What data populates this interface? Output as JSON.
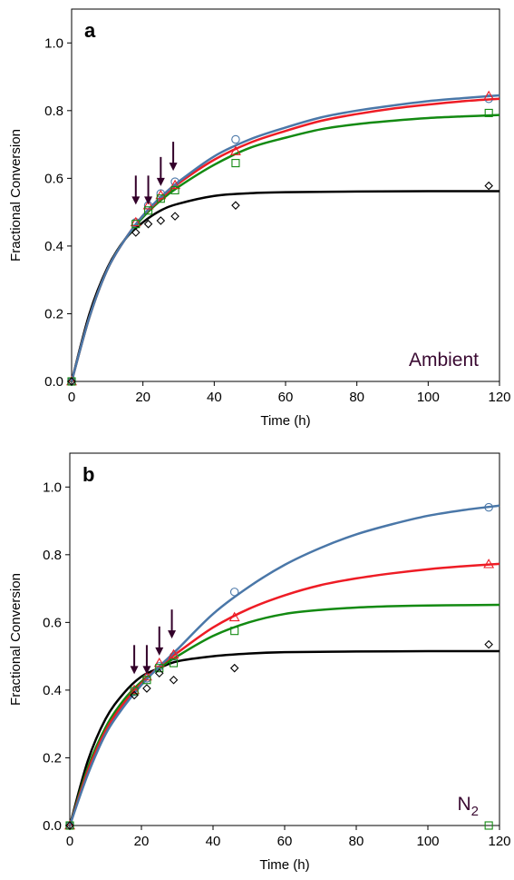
{
  "colors": {
    "blue": "#4a77a8",
    "red": "#ee1c25",
    "green": "#138a12",
    "black": "#000000",
    "arrow": "#33002a",
    "condition": "#3a0a32"
  },
  "chart_data": [
    {
      "type": "scatter",
      "panel_label": "a",
      "condition_label": "Ambient",
      "condition_sub": "",
      "xlabel": "Time (h)",
      "ylabel": "Fractional Conversion",
      "xlim": [
        0,
        120
      ],
      "ylim": [
        0,
        1.1
      ],
      "xticks": [
        0,
        20,
        40,
        60,
        80,
        100,
        120
      ],
      "yticks": [
        0.0,
        0.2,
        0.4,
        0.6,
        0.8,
        1.0
      ],
      "xtick_labels": [
        "0",
        "20",
        "40",
        "60",
        "80",
        "100",
        "120"
      ],
      "ytick_labels": [
        "0.0",
        "0.2",
        "0.4",
        "0.6",
        "0.8",
        "1.0"
      ],
      "arrows_x": [
        18,
        21.5,
        25,
        28.5
      ],
      "series": [
        {
          "marker": "circle",
          "color": "blue",
          "x": [
            0,
            18,
            21.5,
            25,
            29,
            46,
            117
          ],
          "y": [
            0,
            0.47,
            0.52,
            0.555,
            0.59,
            0.715,
            0.835
          ],
          "curve": [
            [
              0,
              0
            ],
            [
              5,
              0.19
            ],
            [
              10,
              0.33
            ],
            [
              15,
              0.42
            ],
            [
              20,
              0.49
            ],
            [
              25,
              0.545
            ],
            [
              30,
              0.59
            ],
            [
              40,
              0.665
            ],
            [
              50,
              0.715
            ],
            [
              60,
              0.75
            ],
            [
              70,
              0.78
            ],
            [
              80,
              0.8
            ],
            [
              90,
              0.815
            ],
            [
              100,
              0.828
            ],
            [
              110,
              0.837
            ],
            [
              120,
              0.845
            ]
          ]
        },
        {
          "marker": "triangle",
          "color": "red",
          "x": [
            0,
            18,
            21.5,
            25,
            29,
            46,
            117
          ],
          "y": [
            0,
            0.47,
            0.52,
            0.55,
            0.58,
            0.68,
            0.843
          ],
          "curve": [
            [
              0,
              0
            ],
            [
              5,
              0.19
            ],
            [
              10,
              0.33
            ],
            [
              15,
              0.42
            ],
            [
              20,
              0.49
            ],
            [
              25,
              0.54
            ],
            [
              30,
              0.585
            ],
            [
              40,
              0.655
            ],
            [
              50,
              0.705
            ],
            [
              60,
              0.74
            ],
            [
              70,
              0.77
            ],
            [
              80,
              0.79
            ],
            [
              90,
              0.806
            ],
            [
              100,
              0.818
            ],
            [
              110,
              0.828
            ],
            [
              120,
              0.835
            ]
          ]
        },
        {
          "marker": "square",
          "color": "green",
          "x": [
            0,
            18,
            21.5,
            25,
            29,
            46,
            117
          ],
          "y": [
            0,
            0.465,
            0.505,
            0.54,
            0.565,
            0.645,
            0.793
          ],
          "curve": [
            [
              0,
              0
            ],
            [
              5,
              0.19
            ],
            [
              10,
              0.33
            ],
            [
              15,
              0.42
            ],
            [
              20,
              0.485
            ],
            [
              25,
              0.535
            ],
            [
              30,
              0.575
            ],
            [
              40,
              0.64
            ],
            [
              50,
              0.69
            ],
            [
              60,
              0.72
            ],
            [
              70,
              0.745
            ],
            [
              80,
              0.76
            ],
            [
              90,
              0.77
            ],
            [
              100,
              0.778
            ],
            [
              110,
              0.783
            ],
            [
              120,
              0.787
            ]
          ]
        },
        {
          "marker": "diamond",
          "color": "black",
          "x": [
            0,
            18,
            21.5,
            25,
            29,
            46,
            117
          ],
          "y": [
            0,
            0.44,
            0.465,
            0.475,
            0.488,
            0.52,
            0.578
          ],
          "curve": [
            [
              0,
              0
            ],
            [
              5,
              0.2
            ],
            [
              10,
              0.335
            ],
            [
              15,
              0.42
            ],
            [
              20,
              0.47
            ],
            [
              25,
              0.505
            ],
            [
              30,
              0.525
            ],
            [
              40,
              0.548
            ],
            [
              50,
              0.556
            ],
            [
              60,
              0.559
            ],
            [
              80,
              0.561
            ],
            [
              100,
              0.562
            ],
            [
              120,
              0.562
            ]
          ]
        }
      ]
    },
    {
      "type": "scatter",
      "panel_label": "b",
      "condition_label": "N",
      "condition_sub": "2",
      "xlabel": "Time (h)",
      "ylabel": "Fractional Conversion",
      "xlim": [
        0,
        120
      ],
      "ylim": [
        0,
        1.1
      ],
      "xticks": [
        0,
        20,
        40,
        60,
        80,
        100,
        120
      ],
      "yticks": [
        0.0,
        0.2,
        0.4,
        0.6,
        0.8,
        1.0
      ],
      "xtick_labels": [
        "0",
        "20",
        "40",
        "60",
        "80",
        "100",
        "120"
      ],
      "ytick_labels": [
        "0.0",
        "0.2",
        "0.4",
        "0.6",
        "0.8",
        "1.0"
      ],
      "arrows_x": [
        18,
        21.5,
        25,
        28.5
      ],
      "series": [
        {
          "marker": "circle",
          "color": "blue",
          "x": [
            0,
            18,
            21.5,
            25,
            29,
            46,
            117
          ],
          "y": [
            0,
            0.395,
            0.435,
            0.47,
            0.5,
            0.69,
            0.94
          ],
          "curve": [
            [
              0,
              0
            ],
            [
              5,
              0.15
            ],
            [
              10,
              0.27
            ],
            [
              15,
              0.35
            ],
            [
              20,
              0.415
            ],
            [
              25,
              0.47
            ],
            [
              30,
              0.52
            ],
            [
              40,
              0.625
            ],
            [
              50,
              0.705
            ],
            [
              60,
              0.77
            ],
            [
              70,
              0.82
            ],
            [
              80,
              0.86
            ],
            [
              90,
              0.89
            ],
            [
              100,
              0.915
            ],
            [
              110,
              0.932
            ],
            [
              120,
              0.945
            ]
          ]
        },
        {
          "marker": "triangle",
          "color": "red",
          "x": [
            0,
            18,
            21.5,
            25,
            29,
            46,
            117
          ],
          "y": [
            0,
            0.4,
            0.44,
            0.48,
            0.505,
            0.615,
            0.772
          ],
          "curve": [
            [
              0,
              0
            ],
            [
              5,
              0.16
            ],
            [
              10,
              0.28
            ],
            [
              15,
              0.36
            ],
            [
              20,
              0.42
            ],
            [
              25,
              0.47
            ],
            [
              30,
              0.51
            ],
            [
              40,
              0.585
            ],
            [
              50,
              0.64
            ],
            [
              60,
              0.68
            ],
            [
              70,
              0.71
            ],
            [
              80,
              0.73
            ],
            [
              90,
              0.745
            ],
            [
              100,
              0.757
            ],
            [
              110,
              0.766
            ],
            [
              120,
              0.773
            ]
          ]
        },
        {
          "marker": "square",
          "color": "green",
          "x": [
            0,
            18,
            21.5,
            25,
            29,
            46,
            117
          ],
          "y": [
            0,
            0.397,
            0.43,
            0.465,
            0.48,
            0.575,
            0.0
          ],
          "curve": [
            [
              0,
              0
            ],
            [
              5,
              0.17
            ],
            [
              10,
              0.29
            ],
            [
              15,
              0.37
            ],
            [
              20,
              0.425
            ],
            [
              25,
              0.465
            ],
            [
              30,
              0.5
            ],
            [
              40,
              0.56
            ],
            [
              50,
              0.6
            ],
            [
              60,
              0.625
            ],
            [
              70,
              0.637
            ],
            [
              80,
              0.644
            ],
            [
              90,
              0.648
            ],
            [
              100,
              0.65
            ],
            [
              110,
              0.651
            ],
            [
              120,
              0.652
            ]
          ]
        },
        {
          "marker": "diamond",
          "color": "black",
          "x": [
            0,
            18,
            21.5,
            25,
            29,
            46,
            117
          ],
          "y": [
            0,
            0.385,
            0.405,
            0.45,
            0.43,
            0.465,
            0.535
          ],
          "curve": [
            [
              0,
              0
            ],
            [
              5,
              0.19
            ],
            [
              10,
              0.315
            ],
            [
              15,
              0.39
            ],
            [
              20,
              0.44
            ],
            [
              25,
              0.465
            ],
            [
              30,
              0.485
            ],
            [
              40,
              0.5
            ],
            [
              50,
              0.508
            ],
            [
              60,
              0.512
            ],
            [
              80,
              0.514
            ],
            [
              100,
              0.515
            ],
            [
              120,
              0.515
            ]
          ]
        }
      ]
    }
  ]
}
